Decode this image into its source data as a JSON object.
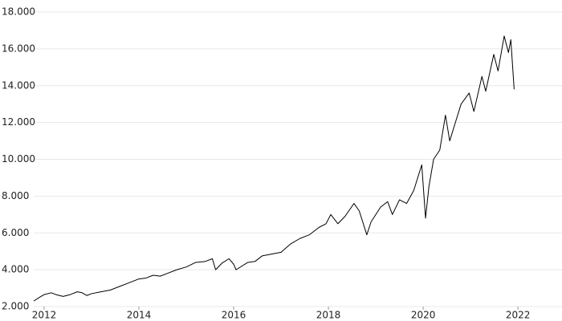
{
  "chart_data": {
    "type": "line",
    "x": [
      2011.78,
      2011.9,
      2012.0,
      2012.15,
      2012.25,
      2012.4,
      2012.55,
      2012.7,
      2012.8,
      2012.9,
      2013.0,
      2013.2,
      2013.4,
      2013.6,
      2013.8,
      2014.0,
      2014.15,
      2014.3,
      2014.45,
      2014.6,
      2014.8,
      2015.0,
      2015.2,
      2015.4,
      2015.55,
      2015.62,
      2015.75,
      2015.9,
      2016.0,
      2016.05,
      2016.3,
      2016.45,
      2016.6,
      2016.8,
      2017.0,
      2017.2,
      2017.4,
      2017.6,
      2017.8,
      2017.95,
      2018.05,
      2018.2,
      2018.35,
      2018.54,
      2018.65,
      2018.81,
      2018.9,
      2019.1,
      2019.25,
      2019.35,
      2019.5,
      2019.65,
      2019.8,
      2019.97,
      2020.05,
      2020.12,
      2020.22,
      2020.35,
      2020.47,
      2020.56,
      2020.68,
      2020.8,
      2020.97,
      2021.07,
      2021.24,
      2021.32,
      2021.49,
      2021.58,
      2021.71,
      2021.8,
      2021.85,
      2021.92
    ],
    "series": [
      {
        "color": "#000000",
        "values": [
          2300,
          2500,
          2650,
          2750,
          2650,
          2550,
          2650,
          2800,
          2750,
          2600,
          2700,
          2800,
          2900,
          3100,
          3300,
          3500,
          3550,
          3700,
          3650,
          3800,
          4000,
          4150,
          4400,
          4450,
          4600,
          4000,
          4350,
          4600,
          4300,
          4000,
          4400,
          4450,
          4750,
          4850,
          4950,
          5400,
          5700,
          5900,
          6300,
          6500,
          7000,
          6500,
          6900,
          7600,
          7200,
          5900,
          6600,
          7400,
          7700,
          7000,
          7800,
          7600,
          8300,
          9700,
          6800,
          8500,
          10000,
          10500,
          12400,
          11000,
          12000,
          13000,
          13600,
          12600,
          14500,
          13700,
          15700,
          14800,
          16700,
          15800,
          16500,
          13800
        ]
      }
    ],
    "xlim": [
      2011.78,
      2022.93
    ],
    "xticks": [
      2012,
      2014,
      2016,
      2018,
      2020,
      2022
    ],
    "ylim": [
      2000,
      18000
    ],
    "yticks": [
      {
        "value": 2000,
        "label": "2.000"
      },
      {
        "value": 4000,
        "label": "4.000"
      },
      {
        "value": 6000,
        "label": "6.000"
      },
      {
        "value": 8000,
        "label": "8.000"
      },
      {
        "value": 10000,
        "label": "10.000"
      },
      {
        "value": 12000,
        "label": "12.000"
      },
      {
        "value": 14000,
        "label": "14.000"
      },
      {
        "value": 16000,
        "label": "16.000"
      },
      {
        "value": 18000,
        "label": "18.000"
      }
    ],
    "grid": true
  }
}
